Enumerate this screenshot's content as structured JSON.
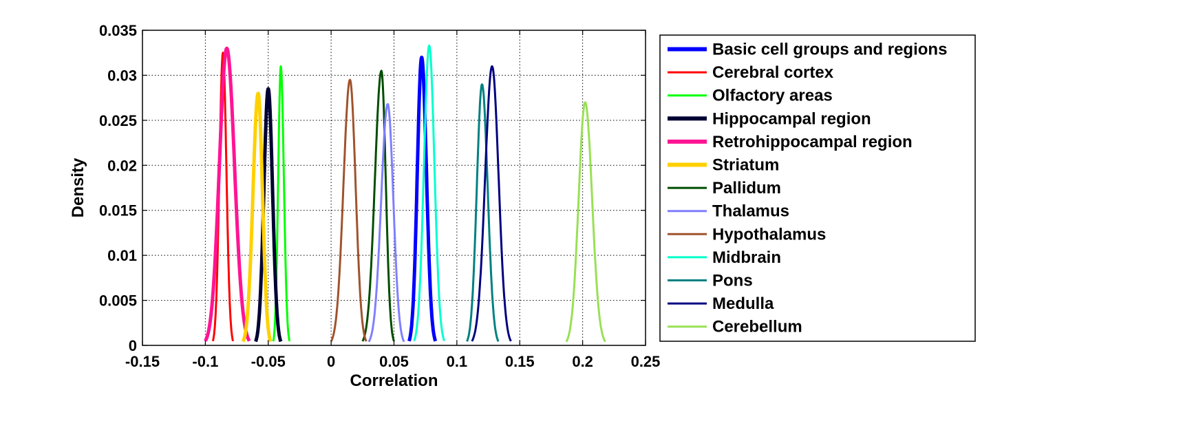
{
  "chart_data": {
    "type": "line",
    "xlabel": "Correlation",
    "ylabel": "Density",
    "xlim": [
      -0.15,
      0.25
    ],
    "ylim": [
      0,
      0.035
    ],
    "xticks": [
      -0.15,
      -0.1,
      -0.05,
      0,
      0.05,
      0.1,
      0.15,
      0.2,
      0.25
    ],
    "xtick_labels": [
      "-0.15",
      "-0.1",
      "-0.05",
      "0",
      "0.05",
      "0.1",
      "0.15",
      "0.2",
      "0.25"
    ],
    "yticks": [
      0,
      0.005,
      0.01,
      0.015,
      0.02,
      0.025,
      0.03,
      0.035
    ],
    "ytick_labels": [
      "0",
      "0.005",
      "0.01",
      "0.015",
      "0.02",
      "0.025",
      "0.03",
      "0.035"
    ],
    "grid": true,
    "legend_position": "outside-right",
    "series": [
      {
        "name": "Basic cell groups and regions",
        "color": "#0000ff",
        "width": "thick",
        "peak_x": 0.072,
        "peak_density": 0.032,
        "support": [
          0.062,
          0.083
        ]
      },
      {
        "name": "Cerebral cortex",
        "color": "#ff0000",
        "width": "thin",
        "peak_x": -0.086,
        "peak_density": 0.0325,
        "support": [
          -0.094,
          -0.078
        ]
      },
      {
        "name": "Olfactory areas",
        "color": "#00ff00",
        "width": "thin",
        "peak_x": -0.04,
        "peak_density": 0.031,
        "support": [
          -0.046,
          -0.033
        ]
      },
      {
        "name": "Hippocampal region",
        "color": "#000033",
        "width": "thick",
        "peak_x": -0.05,
        "peak_density": 0.0285,
        "support": [
          -0.06,
          -0.04
        ]
      },
      {
        "name": "Retrohippocampal region",
        "color": "#ff1493",
        "width": "thick",
        "peak_x": -0.083,
        "peak_density": 0.033,
        "support": [
          -0.1,
          -0.065
        ]
      },
      {
        "name": "Striatum",
        "color": "#ffd000",
        "width": "thick",
        "peak_x": -0.058,
        "peak_density": 0.028,
        "support": [
          -0.07,
          -0.048
        ]
      },
      {
        "name": "Pallidum",
        "color": "#004d00",
        "width": "thin",
        "peak_x": 0.04,
        "peak_density": 0.0305,
        "support": [
          0.025,
          0.05
        ]
      },
      {
        "name": "Thalamus",
        "color": "#7f7fff",
        "width": "thin",
        "peak_x": 0.045,
        "peak_density": 0.0268,
        "support": [
          0.03,
          0.058
        ]
      },
      {
        "name": "Hypothalamus",
        "color": "#a0522d",
        "width": "thin",
        "peak_x": 0.015,
        "peak_density": 0.0295,
        "support": [
          0.0,
          0.028
        ]
      },
      {
        "name": "Midbrain",
        "color": "#00ffcc",
        "width": "thin",
        "peak_x": 0.078,
        "peak_density": 0.0333,
        "support": [
          0.066,
          0.09
        ]
      },
      {
        "name": "Pons",
        "color": "#008080",
        "width": "thin",
        "peak_x": 0.12,
        "peak_density": 0.029,
        "support": [
          0.108,
          0.133
        ]
      },
      {
        "name": "Medulla",
        "color": "#000080",
        "width": "thin",
        "peak_x": 0.128,
        "peak_density": 0.031,
        "support": [
          0.112,
          0.143
        ]
      },
      {
        "name": "Cerebellum",
        "color": "#99e055",
        "width": "thin",
        "peak_x": 0.202,
        "peak_density": 0.027,
        "support": [
          0.187,
          0.218
        ]
      }
    ]
  }
}
